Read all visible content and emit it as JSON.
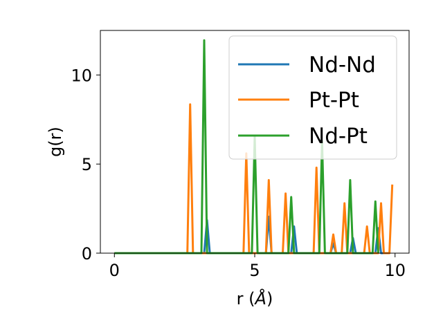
{
  "chart_data": {
    "type": "line",
    "xlabel_prefix": "r (",
    "xlabel_unit": "Å",
    "xlabel_suffix": ")",
    "ylabel": "g(r)",
    "xlim": [
      -0.5,
      10.5
    ],
    "ylim": [
      0,
      12.5
    ],
    "xticks": [
      0,
      5,
      10
    ],
    "yticks": [
      0,
      5,
      10
    ],
    "grid": false,
    "legend_position": "top-right",
    "series": [
      {
        "name": "Nd-Nd",
        "color": "#1f77b4",
        "x": [
          0,
          3.1,
          3.2,
          3.3,
          3.4,
          5.4,
          5.5,
          5.6,
          6.3,
          6.4,
          6.5,
          7.7,
          7.8,
          7.9,
          8.4,
          8.5,
          8.6,
          9.3,
          9.4,
          9.5,
          9.6
        ],
        "y": [
          0,
          0,
          0,
          1.85,
          0,
          0,
          2.05,
          0,
          0,
          1.5,
          0,
          0,
          0.55,
          0,
          0,
          0.85,
          0,
          0,
          1.4,
          0,
          0
        ]
      },
      {
        "name": "Pt-Pt",
        "color": "#ff7f0e",
        "x": [
          0,
          2.6,
          2.7,
          2.8,
          4.6,
          4.7,
          4.8,
          5.4,
          5.5,
          5.6,
          6.0,
          6.1,
          6.2,
          7.1,
          7.2,
          7.3,
          7.7,
          7.8,
          7.9,
          8.1,
          8.2,
          8.3,
          8.9,
          9.0,
          9.1,
          9.4,
          9.5,
          9.6,
          9.8,
          9.9
        ],
        "y": [
          0,
          0,
          8.35,
          0,
          0,
          5.6,
          0,
          0,
          4.1,
          0,
          0,
          3.35,
          0,
          0,
          4.8,
          0,
          0,
          1.05,
          0,
          0,
          2.8,
          0,
          0,
          1.5,
          0,
          0,
          2.8,
          0,
          0,
          3.85
        ]
      },
      {
        "name": "Nd-Pt",
        "color": "#2ca02c",
        "x": [
          0,
          3.1,
          3.2,
          3.3,
          4.9,
          5.0,
          5.1,
          6.2,
          6.3,
          6.4,
          7.3,
          7.4,
          7.5,
          8.3,
          8.4,
          8.5,
          9.2,
          9.3,
          9.4
        ],
        "y": [
          0,
          0,
          11.95,
          0,
          0,
          6.55,
          0,
          0,
          3.15,
          0,
          0,
          6.3,
          0,
          0,
          4.1,
          0,
          0,
          2.9,
          0
        ]
      }
    ]
  }
}
